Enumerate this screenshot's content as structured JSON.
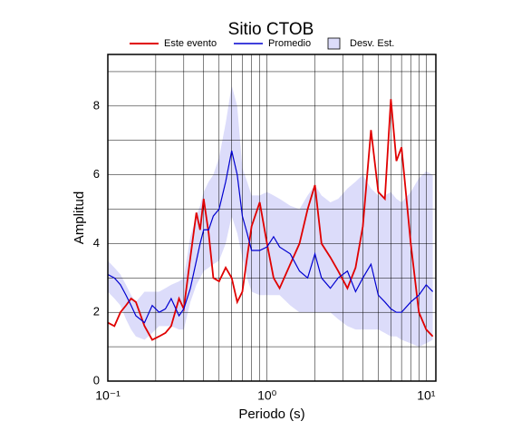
{
  "chart_data": {
    "type": "line",
    "title": "Sitio CTOB",
    "x_label": "Periodo (s)",
    "y_label": "Amplitud",
    "log_x": true,
    "grid": true,
    "xlim": [
      0.1,
      11.5
    ],
    "ylim": [
      0,
      9.5
    ],
    "xticks": [
      {
        "value": 0.1,
        "label": "10⁻¹"
      },
      {
        "value": 1,
        "label": "10⁰"
      },
      {
        "value": 10,
        "label": "10¹"
      }
    ],
    "xminor": [
      0.2,
      0.3,
      0.4,
      0.5,
      0.6,
      0.7,
      0.8,
      0.9,
      2,
      3,
      4,
      5,
      6,
      7,
      8,
      9
    ],
    "yticks": [
      0,
      2,
      4,
      6,
      8
    ],
    "yminor": [
      1,
      3,
      5,
      7,
      9
    ],
    "x": [
      0.1,
      0.11,
      0.12,
      0.13,
      0.14,
      0.15,
      0.17,
      0.19,
      0.21,
      0.23,
      0.25,
      0.28,
      0.3,
      0.33,
      0.36,
      0.38,
      0.4,
      0.43,
      0.46,
      0.5,
      0.55,
      0.6,
      0.65,
      0.7,
      0.75,
      0.8,
      0.9,
      1.0,
      1.1,
      1.2,
      1.4,
      1.6,
      1.8,
      2.0,
      2.2,
      2.5,
      2.8,
      3.2,
      3.6,
      4.0,
      4.5,
      5.0,
      5.5,
      6.0,
      6.5,
      7.0,
      8.0,
      9.0,
      10,
      11
    ],
    "band": {
      "name": "Desv. Est.",
      "color": "#dcdcfa",
      "upper": [
        3.5,
        3.3,
        3.1,
        2.8,
        2.5,
        2.3,
        2.6,
        2.6,
        2.6,
        2.7,
        2.8,
        2.9,
        3.0,
        4.2,
        4.8,
        5.1,
        5.5,
        5.8,
        6.0,
        6.5,
        7.5,
        8.6,
        8.0,
        6.2,
        5.8,
        5.4,
        5.4,
        5.5,
        5.4,
        5.3,
        5.1,
        5.0,
        5.4,
        5.7,
        5.4,
        5.2,
        5.3,
        5.6,
        5.8,
        6.0,
        5.6,
        5.4,
        5.4,
        5.5,
        5.3,
        5.2,
        5.5,
        5.9,
        6.1,
        6.0
      ],
      "lower": [
        2.6,
        2.4,
        2.2,
        1.8,
        1.5,
        1.3,
        1.2,
        1.4,
        1.6,
        1.6,
        1.6,
        1.5,
        1.5,
        2.3,
        2.8,
        3.0,
        3.2,
        3.3,
        3.4,
        3.5,
        4.0,
        4.8,
        4.3,
        3.6,
        3.0,
        2.6,
        2.5,
        2.5,
        2.5,
        2.5,
        2.2,
        2.0,
        2.0,
        2.0,
        2.0,
        2.0,
        1.8,
        1.6,
        1.5,
        1.5,
        1.5,
        1.5,
        1.4,
        1.3,
        1.3,
        1.2,
        1.1,
        1.0,
        1.1,
        1.2
      ]
    },
    "series": [
      {
        "name": "Este evento",
        "color": "#e00000",
        "values": [
          1.7,
          1.6,
          2.0,
          2.2,
          2.4,
          2.3,
          1.6,
          1.2,
          1.3,
          1.4,
          1.6,
          2.4,
          2.1,
          3.6,
          4.9,
          4.4,
          5.3,
          4.3,
          3.0,
          2.9,
          3.3,
          3.0,
          2.3,
          2.6,
          3.6,
          4.5,
          5.2,
          4.0,
          3.0,
          2.7,
          3.4,
          4.0,
          5.0,
          5.7,
          4.0,
          3.6,
          3.2,
          2.7,
          3.3,
          4.5,
          7.3,
          5.5,
          5.3,
          8.2,
          6.4,
          6.8,
          4.0,
          2.0,
          1.5,
          1.3
        ]
      },
      {
        "name": "Promedio",
        "color": "#0000d0",
        "values": [
          3.1,
          3.0,
          2.8,
          2.5,
          2.2,
          1.9,
          1.7,
          2.2,
          2.0,
          2.1,
          2.4,
          1.9,
          2.1,
          2.7,
          3.5,
          4.0,
          4.4,
          4.4,
          4.8,
          5.0,
          5.8,
          6.7,
          6.0,
          4.8,
          4.3,
          3.8,
          3.8,
          3.9,
          4.2,
          3.9,
          3.7,
          3.2,
          3.0,
          3.7,
          3.0,
          2.7,
          3.0,
          3.2,
          2.6,
          3.0,
          3.4,
          2.5,
          2.3,
          2.1,
          2.0,
          2.0,
          2.3,
          2.5,
          2.8,
          2.6
        ]
      }
    ]
  }
}
